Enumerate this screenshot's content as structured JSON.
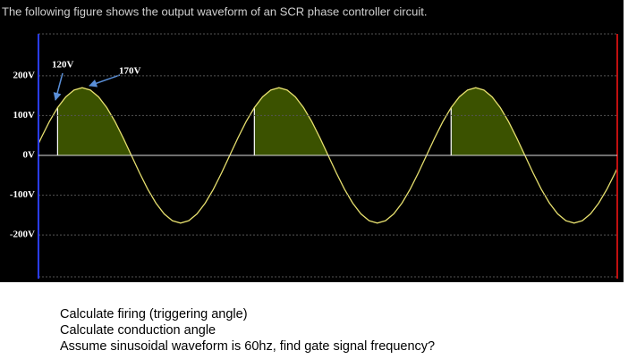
{
  "header": {
    "title": "The following figure shows the output waveform of an SCR phase controller circuit."
  },
  "chart_data": {
    "type": "line",
    "annotations": [
      "120V",
      "170V"
    ],
    "xlim": [
      10,
      1069
    ],
    "ylim": [
      -305,
      305
    ],
    "yticks": [
      {
        "value": 200,
        "label": "200V"
      },
      {
        "value": 100,
        "label": "100V"
      },
      {
        "value": 0,
        "label": "0V"
      },
      {
        "value": -100,
        "label": "-100V"
      },
      {
        "value": -200,
        "label": "-200V"
      }
    ],
    "grid": true,
    "series": [
      {
        "color": "#e6df6e",
        "x": [
          0,
          15,
          30,
          45,
          60,
          75,
          90,
          105,
          120,
          135,
          150,
          165,
          180,
          195,
          210,
          225,
          240,
          255,
          270,
          285,
          300,
          315,
          330,
          345,
          360,
          375,
          390,
          405,
          420,
          435,
          450,
          465,
          480,
          495,
          510,
          525,
          540,
          555,
          570,
          585,
          600,
          615,
          630,
          645,
          660,
          675,
          690,
          705,
          720,
          735,
          750,
          765,
          780,
          795,
          810,
          825,
          840,
          855,
          870,
          885,
          900,
          915,
          930,
          945,
          960,
          975,
          990,
          1005,
          1020,
          1035,
          1050,
          1065,
          1080
        ],
        "values": [
          0,
          44,
          85,
          120,
          147,
          164,
          170,
          164,
          147,
          120,
          85,
          44,
          0,
          -44,
          -85,
          -120,
          -147,
          -164,
          -170,
          -164,
          -147,
          -120,
          -85,
          -44,
          0,
          44,
          85,
          120,
          147,
          164,
          170,
          164,
          147,
          120,
          85,
          44,
          0,
          -44,
          -85,
          -120,
          -147,
          -164,
          -170,
          -164,
          -147,
          -120,
          -85,
          -44,
          0,
          44,
          85,
          120,
          147,
          164,
          170,
          164,
          147,
          120,
          85,
          44,
          0,
          -44,
          -85,
          -120,
          -147,
          -164,
          -170,
          -164,
          -147,
          -120,
          -85,
          -44,
          0
        ]
      }
    ],
    "shaded": [
      {
        "from": 45,
        "to": 180,
        "color": "#3b5200"
      },
      {
        "from": 405,
        "to": 540,
        "color": "#3b5200"
      },
      {
        "from": 765,
        "to": 900,
        "color": "#3b5200"
      }
    ]
  },
  "questions": [
    "Calculate firing (triggering angle)",
    "Calculate conduction angle",
    "Assume sinusoidal waveform is 60hz, find gate signal frequency?"
  ]
}
